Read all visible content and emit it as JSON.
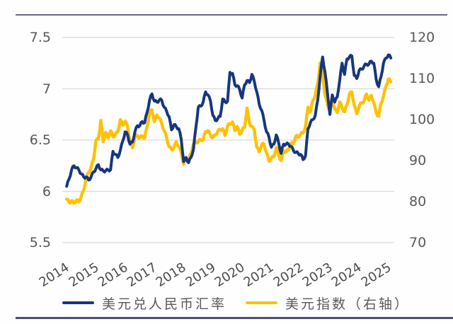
{
  "figure": {
    "background": "#fefefe",
    "top_rule_color": "#686884",
    "bottom_rule_color": "#4e4e78",
    "gridline_color": "#d9d9d9"
  },
  "left_axis": {
    "tick_labels": [
      "7.5",
      "7",
      "6.5",
      "6",
      "5.5"
    ],
    "tick_values": [
      7.5,
      7,
      6.5,
      6,
      5.5
    ],
    "min": 5.5,
    "max": 7.5
  },
  "right_axis": {
    "tick_labels": [
      "120",
      "110",
      "100",
      "90",
      "80",
      "70"
    ],
    "tick_values": [
      120,
      110,
      100,
      90,
      80,
      70
    ],
    "min": 70,
    "max": 120
  },
  "x_axis": {
    "tick_labels": [
      "2014",
      "2015",
      "2016",
      "2017",
      "2018",
      "2019",
      "2020",
      "2021",
      "2022",
      "2023",
      "2024",
      "2025"
    ]
  },
  "legend": [
    {
      "label": "美元兑人民币汇率",
      "color": "#16377f"
    },
    {
      "label": "美元指数（右轴）",
      "color": "#ffc103"
    }
  ],
  "chart_data": {
    "type": "line",
    "title": "",
    "xlabel": "",
    "ylabel_left": "",
    "ylabel_right": "",
    "grid": "horizontal",
    "legend_position": "bottom",
    "x_start_year": 2014,
    "x_step_months": 1,
    "xlim": [
      2013.85,
      2025.2
    ],
    "left_ylim": [
      5.5,
      7.5
    ],
    "right_ylim": [
      70,
      120
    ],
    "series": [
      {
        "name": "美元兑人民币汇率",
        "axis": "left",
        "color": "#16377f",
        "values": [
          6.05,
          6.12,
          6.21,
          6.25,
          6.23,
          6.21,
          6.17,
          6.14,
          6.14,
          6.11,
          6.14,
          6.19,
          6.22,
          6.26,
          6.21,
          6.2,
          6.2,
          6.21,
          6.21,
          6.39,
          6.36,
          6.33,
          6.4,
          6.49,
          6.58,
          6.55,
          6.46,
          6.48,
          6.58,
          6.64,
          6.64,
          6.68,
          6.67,
          6.77,
          6.89,
          6.95,
          6.88,
          6.87,
          6.89,
          6.89,
          6.82,
          6.78,
          6.73,
          6.6,
          6.65,
          6.63,
          6.61,
          6.51,
          6.29,
          6.33,
          6.28,
          6.33,
          6.41,
          6.62,
          6.82,
          6.83,
          6.87,
          6.97,
          6.94,
          6.88,
          6.74,
          6.69,
          6.71,
          6.73,
          6.9,
          6.87,
          6.88,
          7.16,
          7.15,
          7.04,
          7.03,
          6.99,
          6.91,
          7.04,
          7.08,
          7.06,
          7.14,
          7.07,
          6.97,
          6.85,
          6.79,
          6.69,
          6.58,
          6.53,
          6.43,
          6.46,
          6.55,
          6.47,
          6.37,
          6.46,
          6.46,
          6.46,
          6.44,
          6.4,
          6.38,
          6.37,
          6.36,
          6.31,
          6.35,
          6.61,
          6.67,
          6.7,
          6.74,
          6.89,
          7.12,
          7.31,
          7.16,
          6.96,
          6.75,
          6.94,
          6.87,
          6.92,
          7.08,
          7.25,
          7.14,
          7.29,
          7.31,
          7.32,
          7.13,
          7.1,
          7.18,
          7.19,
          7.22,
          7.24,
          7.24,
          7.27,
          7.25,
          7.09,
          7.02,
          7.12,
          7.25,
          7.3,
          7.33,
          7.3
        ]
      },
      {
        "name": "美元指数（右轴）",
        "axis": "right",
        "color": "#ffc103",
        "values": [
          80.6,
          79.8,
          80.2,
          79.6,
          80.4,
          79.9,
          81.4,
          82.7,
          85.9,
          87.0,
          88.3,
          90.3,
          94.8,
          95.3,
          99.8,
          94.6,
          96.9,
          95.5,
          97.3,
          95.8,
          96.3,
          97.0,
          100.0,
          98.6,
          99.6,
          98.2,
          94.6,
          93.1,
          95.9,
          96.1,
          95.5,
          96.0,
          95.5,
          98.3,
          101.5,
          102.4,
          99.5,
          101.1,
          100.4,
          99.0,
          97.3,
          95.6,
          93.4,
          92.7,
          93.1,
          94.6,
          93.3,
          92.1,
          89.1,
          90.6,
          90.0,
          91.8,
          94.0,
          94.5,
          94.6,
          95.1,
          95.1,
          97.1,
          97.3,
          96.2,
          95.6,
          96.2,
          97.2,
          97.5,
          97.8,
          96.1,
          98.5,
          98.9,
          99.4,
          97.3,
          98.3,
          96.4,
          97.4,
          98.1,
          102.8,
          99.0,
          98.3,
          97.4,
          93.3,
          92.1,
          93.9,
          94.0,
          91.9,
          89.9,
          90.6,
          90.9,
          93.2,
          91.3,
          90.0,
          92.4,
          92.1,
          92.6,
          94.2,
          94.1,
          96.0,
          95.7,
          96.5,
          96.7,
          98.3,
          103.0,
          101.8,
          104.7,
          105.9,
          108.8,
          113.8,
          111.5,
          106.0,
          103.8,
          102.2,
          104.9,
          102.5,
          101.7,
          104.3,
          102.9,
          101.9,
          103.6,
          106.2,
          106.7,
          103.5,
          101.4,
          103.3,
          104.1,
          104.5,
          106.2,
          104.7,
          105.9,
          104.1,
          101.7,
          100.8,
          104.0,
          105.7,
          108.1,
          109.9,
          109.2
        ]
      }
    ]
  }
}
